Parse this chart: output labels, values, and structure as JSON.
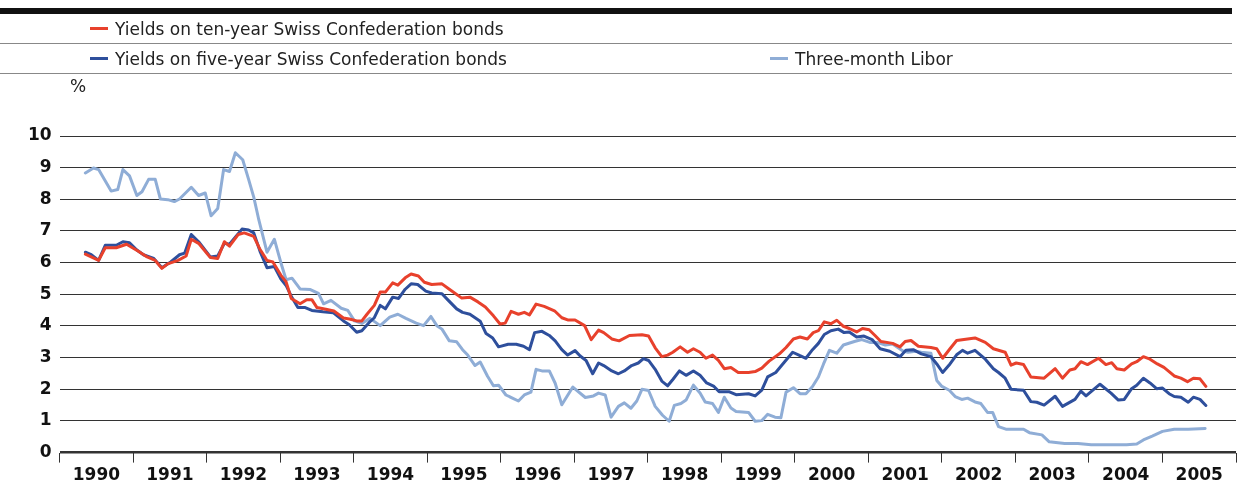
{
  "chart_data": {
    "type": "line",
    "ylabel": "%",
    "legend": "top",
    "grid": "y",
    "marker": "none",
    "line_style": "solid",
    "xlim": [
      1990,
      2006
    ],
    "ylim": [
      0,
      10
    ],
    "yticks": [
      0,
      1,
      2,
      3,
      4,
      5,
      6,
      7,
      8,
      9,
      10
    ],
    "xticks": [
      {
        "value": 1990,
        "label": null
      },
      {
        "value": 1990.5,
        "label": "1990"
      },
      {
        "value": 1991,
        "label": null
      },
      {
        "value": 1991.5,
        "label": "1991"
      },
      {
        "value": 1992,
        "label": null
      },
      {
        "value": 1992.5,
        "label": "1992"
      },
      {
        "value": 1993,
        "label": null
      },
      {
        "value": 1993.5,
        "label": "1993"
      },
      {
        "value": 1994,
        "label": null
      },
      {
        "value": 1994.5,
        "label": "1994"
      },
      {
        "value": 1995,
        "label": null
      },
      {
        "value": 1995.5,
        "label": "1995"
      },
      {
        "value": 1996,
        "label": null
      },
      {
        "value": 1996.5,
        "label": "1996"
      },
      {
        "value": 1997,
        "label": null
      },
      {
        "value": 1997.5,
        "label": "1997"
      },
      {
        "value": 1998,
        "label": null
      },
      {
        "value": 1998.5,
        "label": "1998"
      },
      {
        "value": 1999,
        "label": null
      },
      {
        "value": 1999.5,
        "label": "1999"
      },
      {
        "value": 2000,
        "label": null
      },
      {
        "value": 2000.5,
        "label": "2000"
      },
      {
        "value": 2001,
        "label": null
      },
      {
        "value": 2001.5,
        "label": "2001"
      },
      {
        "value": 2002,
        "label": null
      },
      {
        "value": 2002.5,
        "label": "2002"
      },
      {
        "value": 2003,
        "label": null
      },
      {
        "value": 2003.5,
        "label": "2003"
      },
      {
        "value": 2004,
        "label": null
      },
      {
        "value": 2004.5,
        "label": "2004"
      },
      {
        "value": 2005,
        "label": null
      },
      {
        "value": 2005.5,
        "label": "2005"
      },
      {
        "value": 2006,
        "label": null
      }
    ],
    "series": [
      {
        "name": "Yields on ten-year Swiss Confederation bonds",
        "color": "#e8412c",
        "x": [
          1990.35,
          1990.53,
          1990.62,
          1990.77,
          1990.91,
          1991.07,
          1991.19,
          1991.3,
          1991.39,
          1991.47,
          1991.61,
          1991.72,
          1991.79,
          1991.89,
          1992.05,
          1992.15,
          1992.24,
          1992.31,
          1992.43,
          1992.51,
          1992.64,
          1992.72,
          1992.82,
          1992.9,
          1993.01,
          1993.08,
          1993.15,
          1993.27,
          1993.36,
          1993.43,
          1993.5,
          1993.62,
          1993.73,
          1993.86,
          1993.94,
          1994.04,
          1994.11,
          1994.18,
          1994.28,
          1994.36,
          1994.43,
          1994.53,
          1994.6,
          1994.7,
          1994.78,
          1994.88,
          1994.96,
          1995.06,
          1995.2,
          1995.3,
          1995.47,
          1995.58,
          1995.69,
          1995.79,
          1995.9,
          1995.99,
          1996.06,
          1996.14,
          1996.24,
          1996.32,
          1996.39,
          1996.48,
          1996.59,
          1996.73,
          1996.83,
          1996.91,
          1997.01,
          1997.14,
          1997.23,
          1997.33,
          1997.4,
          1997.51,
          1997.61,
          1997.75,
          1997.92,
          1998.01,
          1998.1,
          1998.19,
          1998.27,
          1998.34,
          1998.44,
          1998.54,
          1998.62,
          1998.71,
          1998.79,
          1998.88,
          1998.96,
          1999.04,
          1999.13,
          1999.23,
          1999.37,
          1999.46,
          1999.55,
          1999.65,
          1999.79,
          1999.88,
          1999.98,
          2000.07,
          2000.17,
          2000.25,
          2000.32,
          2000.4,
          2000.49,
          2000.57,
          2000.66,
          2000.74,
          2000.84,
          2000.92,
          2001.01,
          2001.09,
          2001.17,
          2001.33,
          2001.43,
          2001.5,
          2001.58,
          2001.68,
          2001.85,
          2001.93,
          2002.01,
          2002.11,
          2002.2,
          2002.45,
          2002.59,
          2002.7,
          2002.86,
          2002.94,
          2003.01,
          2003.11,
          2003.21,
          2003.39,
          2003.54,
          2003.64,
          2003.74,
          2003.81,
          2003.89,
          2003.98,
          2004.13,
          2004.23,
          2004.31,
          2004.38,
          2004.48,
          2004.58,
          2004.65,
          2004.74,
          2004.83,
          2004.93,
          2005.02,
          2005.09,
          2005.16,
          2005.25,
          2005.34,
          2005.42,
          2005.51,
          2005.59
        ],
        "values": [
          6.27,
          6.07,
          6.47,
          6.47,
          6.58,
          6.36,
          6.18,
          6.07,
          5.82,
          5.96,
          6.07,
          6.21,
          6.74,
          6.61,
          6.16,
          6.13,
          6.66,
          6.52,
          6.89,
          6.94,
          6.83,
          6.44,
          6.07,
          6.02,
          5.6,
          5.39,
          4.87,
          4.7,
          4.83,
          4.83,
          4.58,
          4.53,
          4.47,
          4.25,
          4.22,
          4.16,
          4.16,
          4.37,
          4.65,
          5.07,
          5.07,
          5.36,
          5.29,
          5.52,
          5.64,
          5.58,
          5.38,
          5.31,
          5.33,
          5.16,
          4.88,
          4.91,
          4.76,
          4.6,
          4.32,
          4.06,
          4.09,
          4.46,
          4.37,
          4.43,
          4.35,
          4.69,
          4.62,
          4.48,
          4.26,
          4.19,
          4.19,
          4.01,
          3.57,
          3.87,
          3.79,
          3.59,
          3.53,
          3.7,
          3.72,
          3.68,
          3.31,
          3.03,
          3.08,
          3.17,
          3.34,
          3.17,
          3.28,
          3.17,
          2.98,
          3.08,
          2.91,
          2.65,
          2.69,
          2.53,
          2.53,
          2.56,
          2.67,
          2.89,
          3.12,
          3.32,
          3.59,
          3.65,
          3.59,
          3.79,
          3.85,
          4.13,
          4.07,
          4.18,
          3.99,
          3.92,
          3.81,
          3.92,
          3.88,
          3.7,
          3.51,
          3.45,
          3.34,
          3.51,
          3.54,
          3.36,
          3.32,
          3.28,
          2.98,
          3.28,
          3.54,
          3.62,
          3.48,
          3.28,
          3.17,
          2.76,
          2.83,
          2.78,
          2.39,
          2.35,
          2.65,
          2.35,
          2.61,
          2.65,
          2.87,
          2.78,
          2.98,
          2.78,
          2.84,
          2.65,
          2.61,
          2.8,
          2.87,
          3.03,
          2.95,
          2.8,
          2.69,
          2.56,
          2.42,
          2.35,
          2.24,
          2.35,
          2.33,
          2.09
        ]
      },
      {
        "name": "Yields on five-year Swiss Confederation bonds",
        "color": "#2e4f9c",
        "x": [
          1990.35,
          1990.43,
          1990.53,
          1990.62,
          1990.77,
          1990.86,
          1990.95,
          1991.05,
          1991.14,
          1991.28,
          1991.39,
          1991.51,
          1991.63,
          1991.7,
          1991.79,
          1991.89,
          1992.05,
          1992.15,
          1992.24,
          1992.31,
          1992.48,
          1992.57,
          1992.64,
          1992.73,
          1992.82,
          1992.92,
          1993.01,
          1993.08,
          1993.15,
          1993.24,
          1993.34,
          1993.43,
          1993.58,
          1993.72,
          1993.86,
          1993.94,
          1994.04,
          1994.11,
          1994.21,
          1994.28,
          1994.36,
          1994.43,
          1994.53,
          1994.61,
          1994.7,
          1994.78,
          1994.87,
          1994.98,
          1995.06,
          1995.2,
          1995.29,
          1995.4,
          1995.48,
          1995.58,
          1995.72,
          1995.8,
          1995.89,
          1995.97,
          1996.1,
          1996.21,
          1996.31,
          1996.39,
          1996.46,
          1996.56,
          1996.66,
          1996.74,
          1996.83,
          1996.91,
          1997.01,
          1997.08,
          1997.16,
          1997.25,
          1997.33,
          1997.4,
          1997.51,
          1997.6,
          1997.68,
          1997.78,
          1997.87,
          1997.94,
          1998.01,
          1998.1,
          1998.19,
          1998.27,
          1998.34,
          1998.43,
          1998.52,
          1998.62,
          1998.71,
          1998.8,
          1998.9,
          1998.97,
          1999.11,
          1999.2,
          1999.37,
          1999.46,
          1999.55,
          1999.63,
          1999.74,
          1999.83,
          1999.97,
          2000.07,
          2000.15,
          2000.24,
          2000.32,
          2000.4,
          2000.49,
          2000.59,
          2000.67,
          2000.74,
          2000.84,
          2000.94,
          2001.05,
          2001.16,
          2001.29,
          2001.43,
          2001.51,
          2001.61,
          2001.72,
          2001.85,
          2001.93,
          2002.01,
          2002.11,
          2002.2,
          2002.28,
          2002.35,
          2002.45,
          2002.59,
          2002.7,
          2002.77,
          2002.86,
          2002.94,
          2003.11,
          2003.21,
          2003.29,
          2003.39,
          2003.54,
          2003.64,
          2003.81,
          2003.89,
          2003.96,
          2004.15,
          2004.3,
          2004.4,
          2004.48,
          2004.58,
          2004.65,
          2004.74,
          2004.83,
          2004.92,
          2005.0,
          2005.09,
          2005.16,
          2005.25,
          2005.35,
          2005.42,
          2005.51,
          2005.59
        ],
        "values": [
          6.33,
          6.25,
          6.07,
          6.55,
          6.55,
          6.66,
          6.63,
          6.4,
          6.25,
          6.13,
          5.84,
          6.02,
          6.25,
          6.3,
          6.89,
          6.66,
          6.18,
          6.21,
          6.61,
          6.58,
          7.06,
          7.03,
          6.94,
          6.33,
          5.84,
          5.88,
          5.48,
          5.28,
          4.94,
          4.58,
          4.58,
          4.49,
          4.45,
          4.42,
          4.16,
          4.04,
          3.8,
          3.85,
          4.11,
          4.26,
          4.65,
          4.54,
          4.91,
          4.87,
          5.16,
          5.33,
          5.31,
          5.1,
          5.04,
          5.02,
          4.8,
          4.54,
          4.43,
          4.37,
          4.15,
          3.76,
          3.62,
          3.34,
          3.42,
          3.42,
          3.36,
          3.25,
          3.79,
          3.83,
          3.7,
          3.53,
          3.25,
          3.08,
          3.22,
          3.05,
          2.91,
          2.49,
          2.83,
          2.75,
          2.58,
          2.49,
          2.58,
          2.75,
          2.83,
          2.97,
          2.91,
          2.63,
          2.26,
          2.11,
          2.31,
          2.58,
          2.44,
          2.58,
          2.44,
          2.2,
          2.09,
          1.92,
          1.92,
          1.83,
          1.86,
          1.79,
          1.97,
          2.39,
          2.53,
          2.78,
          3.17,
          3.06,
          2.98,
          3.25,
          3.45,
          3.73,
          3.85,
          3.9,
          3.79,
          3.81,
          3.65,
          3.68,
          3.57,
          3.28,
          3.2,
          3.03,
          3.23,
          3.25,
          3.12,
          3.03,
          2.8,
          2.53,
          2.8,
          3.09,
          3.23,
          3.14,
          3.23,
          2.95,
          2.65,
          2.53,
          2.35,
          2.0,
          1.97,
          1.61,
          1.59,
          1.5,
          1.78,
          1.46,
          1.68,
          1.94,
          1.79,
          2.16,
          1.88,
          1.66,
          1.68,
          2.02,
          2.13,
          2.35,
          2.2,
          2.02,
          2.04,
          1.86,
          1.77,
          1.75,
          1.59,
          1.75,
          1.68,
          1.49
        ]
      },
      {
        "name": "Three-month Libor",
        "color": "#8fadd6",
        "x": [
          1990.35,
          1990.46,
          1990.53,
          1990.7,
          1990.79,
          1990.86,
          1990.95,
          1991.05,
          1991.12,
          1991.21,
          1991.3,
          1991.37,
          1991.47,
          1991.56,
          1991.63,
          1991.79,
          1991.89,
          1991.98,
          1992.06,
          1992.15,
          1992.23,
          1992.31,
          1992.39,
          1992.49,
          1992.57,
          1992.64,
          1992.71,
          1992.82,
          1992.92,
          1993.01,
          1993.08,
          1993.16,
          1993.27,
          1993.41,
          1993.52,
          1993.59,
          1993.69,
          1993.83,
          1993.92,
          1994.01,
          1994.11,
          1994.22,
          1994.36,
          1994.49,
          1994.6,
          1994.71,
          1994.85,
          1994.95,
          1995.05,
          1995.13,
          1995.2,
          1995.3,
          1995.4,
          1995.48,
          1995.55,
          1995.65,
          1995.72,
          1995.82,
          1995.9,
          1995.97,
          1996.07,
          1996.24,
          1996.32,
          1996.41,
          1996.48,
          1996.56,
          1996.66,
          1996.74,
          1996.83,
          1996.98,
          1997.15,
          1997.26,
          1997.33,
          1997.42,
          1997.5,
          1997.6,
          1997.68,
          1997.77,
          1997.85,
          1997.92,
          1998.01,
          1998.1,
          1998.2,
          1998.29,
          1998.36,
          1998.45,
          1998.52,
          1998.62,
          1998.71,
          1998.78,
          1998.88,
          1998.96,
          1999.04,
          1999.13,
          1999.2,
          1999.37,
          1999.46,
          1999.55,
          1999.63,
          1999.73,
          1999.81,
          1999.88,
          1999.98,
          2000.07,
          2000.15,
          2000.24,
          2000.32,
          2000.39,
          2000.47,
          2000.57,
          2000.66,
          2000.81,
          2000.91,
          2001.02,
          2001.12,
          2001.23,
          2001.33,
          2001.47,
          2001.54,
          2001.64,
          2001.72,
          2001.85,
          2001.93,
          2002.0,
          2002.1,
          2002.18,
          2002.27,
          2002.35,
          2002.45,
          2002.53,
          2002.62,
          2002.69,
          2002.77,
          2002.87,
          2003.11,
          2003.19,
          2003.36,
          2003.46,
          2003.67,
          2003.85,
          2004.03,
          2004.31,
          2004.51,
          2004.65,
          2004.74,
          2004.86,
          2005.0,
          2005.16,
          2005.35,
          2005.58
        ],
        "values": [
          8.83,
          8.99,
          8.94,
          8.26,
          8.31,
          8.94,
          8.74,
          8.12,
          8.24,
          8.63,
          8.63,
          8.01,
          7.99,
          7.93,
          8.01,
          8.38,
          8.12,
          8.2,
          7.48,
          7.71,
          8.94,
          8.88,
          9.47,
          9.25,
          8.63,
          8.07,
          7.34,
          6.33,
          6.74,
          5.99,
          5.46,
          5.51,
          5.17,
          5.15,
          5.03,
          4.7,
          4.81,
          4.56,
          4.49,
          4.16,
          4.08,
          4.24,
          4.01,
          4.28,
          4.37,
          4.24,
          4.09,
          4.01,
          4.3,
          4.01,
          3.9,
          3.53,
          3.5,
          3.25,
          3.08,
          2.75,
          2.86,
          2.41,
          2.11,
          2.13,
          1.82,
          1.63,
          1.82,
          1.91,
          2.63,
          2.58,
          2.58,
          2.19,
          1.51,
          2.07,
          1.74,
          1.79,
          1.88,
          1.82,
          1.12,
          1.46,
          1.57,
          1.4,
          1.63,
          2.0,
          1.96,
          1.46,
          1.18,
          0.99,
          1.49,
          1.55,
          1.66,
          2.13,
          1.88,
          1.6,
          1.55,
          1.27,
          1.75,
          1.41,
          1.3,
          1.27,
          0.99,
          1.01,
          1.21,
          1.12,
          1.1,
          1.91,
          2.05,
          1.86,
          1.86,
          2.09,
          2.39,
          2.8,
          3.23,
          3.14,
          3.4,
          3.51,
          3.57,
          3.48,
          3.48,
          3.4,
          3.43,
          3.21,
          3.17,
          3.2,
          3.17,
          3.14,
          2.28,
          2.09,
          1.97,
          1.77,
          1.68,
          1.72,
          1.6,
          1.55,
          1.27,
          1.27,
          0.82,
          0.74,
          0.74,
          0.63,
          0.56,
          0.34,
          0.29,
          0.29,
          0.25,
          0.25,
          0.25,
          0.27,
          0.4,
          0.52,
          0.67,
          0.74,
          0.74,
          0.76
        ]
      }
    ]
  }
}
